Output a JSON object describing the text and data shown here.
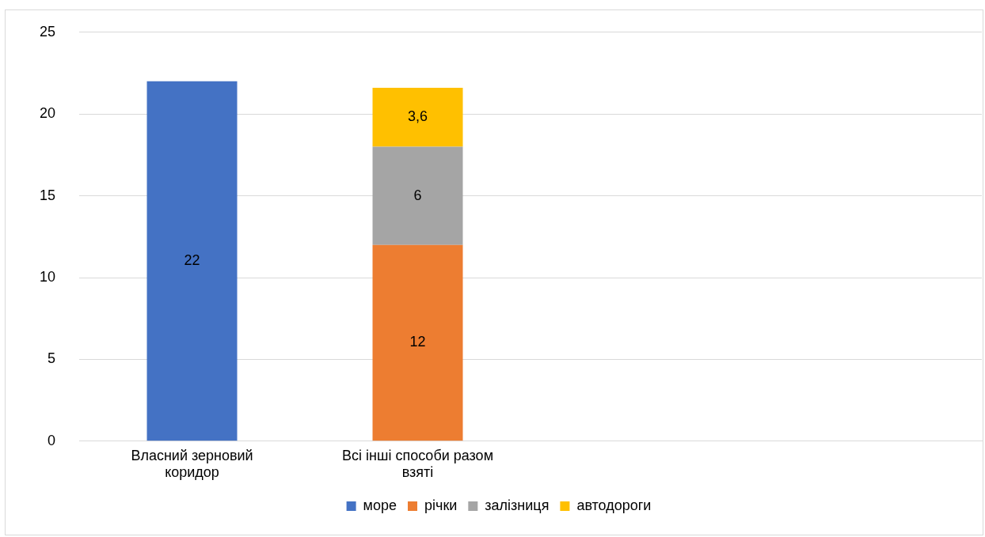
{
  "chart_data": {
    "type": "bar",
    "stacked": true,
    "categories": [
      "Власний зерновий коридор",
      "Всі інші способи разом взяті",
      null,
      null
    ],
    "series": [
      {
        "name": "море",
        "color": "#4472c4",
        "values": [
          22,
          null,
          null,
          null
        ],
        "value_labels": [
          "22",
          null,
          null,
          null
        ]
      },
      {
        "name": "річки",
        "color": "#ed7d31",
        "values": [
          null,
          12,
          null,
          null
        ],
        "value_labels": [
          null,
          "12",
          null,
          null
        ]
      },
      {
        "name": "залізниця",
        "color": "#a5a5a5",
        "values": [
          null,
          6,
          null,
          null
        ],
        "value_labels": [
          null,
          "6",
          null,
          null
        ]
      },
      {
        "name": "автодороги",
        "color": "#ffc000",
        "values": [
          null,
          3.6,
          null,
          null
        ],
        "value_labels": [
          null,
          "3,6",
          null,
          null
        ]
      }
    ],
    "ylim": [
      0,
      25
    ],
    "yticks": [
      0,
      5,
      10,
      15,
      20,
      25
    ],
    "grid": "y",
    "legend": "bottom"
  }
}
